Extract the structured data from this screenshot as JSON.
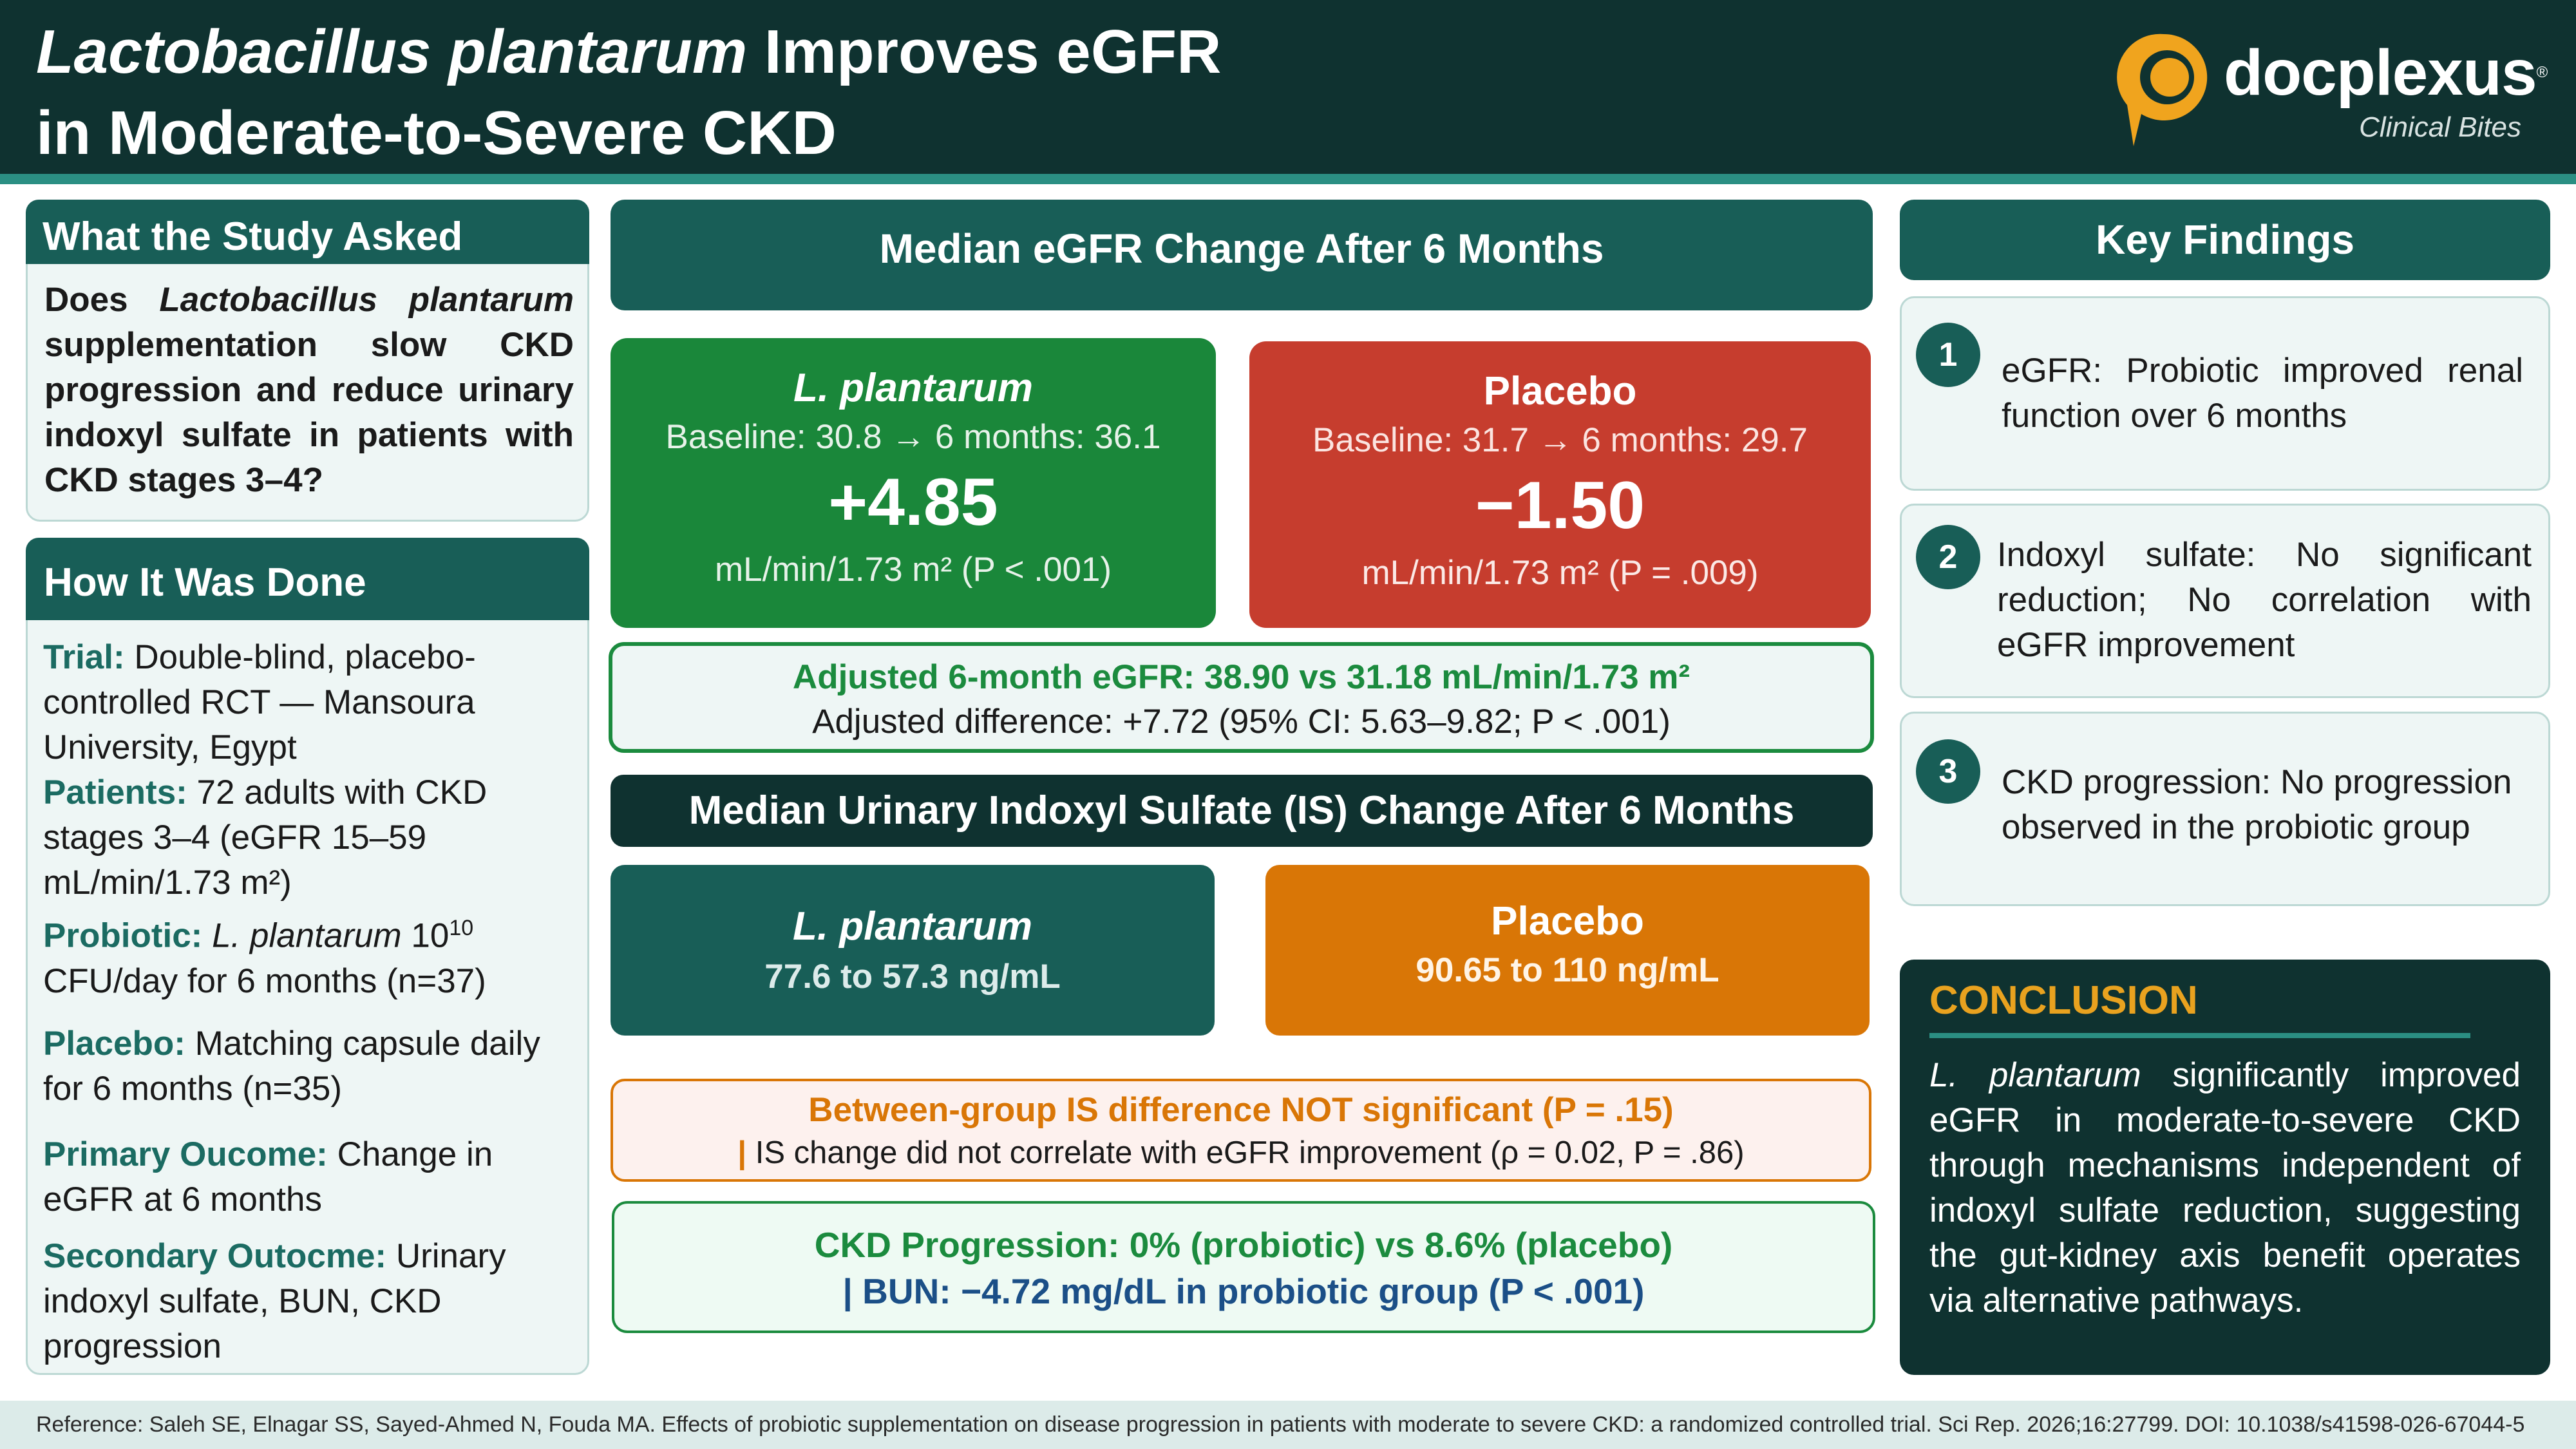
{
  "header": {
    "title_italic": "Lactobacillus plantarum",
    "title_rest": " Improves eGFR",
    "title_line2": "in Moderate-to-Severe CKD",
    "logo_word": "docplexus",
    "logo_reg": "®",
    "logo_tagline": "Clinical Bites"
  },
  "study_question": {
    "heading": "What the Study Asked",
    "q_pre": "Does ",
    "q_italic": "Lactobacillus plantarum",
    "q_post": " supplementation slow CKD progression and reduce urinary indoxyl sulfate in patients with CKD stages 3–4?"
  },
  "methods": {
    "heading": "How It Was Done",
    "trial_label": "Trial:",
    "trial_text": " Double-blind, placebo-controlled RCT — Mansoura University, Egypt",
    "patients_label": "Patients:",
    "patients_text": " 72 adults with CKD stages 3–4 (eGFR 15–59 mL/min/1.73 m²)",
    "probiotic_label": "Probiotic:",
    "probiotic_italic": "L. plantarum",
    "probiotic_dose_base": "10",
    "probiotic_dose_exp": "10",
    "probiotic_text": "CFU/day for 6 months (n=37)",
    "placebo_label": "Placebo:",
    "placebo_text": " Matching capsule daily for 6 months (n=35)",
    "primary_label": "Primary Oucome:",
    "primary_text": " Change in eGFR at 6 months",
    "secondary_label": "Secondary Outocme:",
    "secondary_text": " Urinary indoxyl sulfate, BUN, CKD progression"
  },
  "egfr": {
    "heading": "Median eGFR Change After 6 Months",
    "probiotic": {
      "name": "L. plantarum",
      "baseline": "Baseline: 30.8  →  6 months: 36.1",
      "change": "+4.85",
      "unit": "mL/min/1.73 m²  (P < .001)",
      "color": "#1a873a"
    },
    "placebo": {
      "name": "Placebo",
      "baseline": "Baseline: 31.7  →  6 months: 29.7",
      "change": "−1.50",
      "unit": "mL/min/1.73 m²  (P = .009)",
      "color": "#c63d2e"
    },
    "adjusted_line1": "Adjusted 6-month eGFR: 38.90 vs 31.18 mL/min/1.73 m²",
    "adjusted_line2": "Adjusted difference: +7.72  (95% CI: 5.63–9.82;  P < .001)"
  },
  "indoxyl": {
    "heading": "Median Urinary Indoxyl Sulfate (IS) Change After 6 Months",
    "probiotic": {
      "name": "L. plantarum",
      "value": "77.6 to 57.3 ng/mL"
    },
    "placebo": {
      "name": "Placebo",
      "value": "90.65 to 110  ng/mL"
    },
    "between_line1": "Between-group IS difference NOT significant (P = .15)",
    "between_bar": "|",
    "between_line2": " IS change did not correlate with eGFR improvement (ρ = 0.02, P = .86)",
    "progression_line1": "CKD Progression: 0% (probiotic) vs 8.6% (placebo)",
    "progression_line2": "| BUN: −4.72 mg/dL in probiotic group (P < .001)"
  },
  "key_findings": {
    "heading": "Key Findings",
    "items": [
      {
        "num": "1",
        "text": "eGFR: Probiotic improved renal function over 6 months"
      },
      {
        "num": "2",
        "text": "Indoxyl sulfate: No significant reduction; No correlation with eGFR improvement"
      },
      {
        "num": "3",
        "text": "CKD progression: No progression observed in the probiotic group"
      }
    ]
  },
  "conclusion": {
    "heading": "CONCLUSION",
    "italic": "L. plantarum",
    "text": " significantly improved eGFR in moderate-to-severe CKD through mechanisms independent of indoxyl sulfate reduction, suggesting the gut-kidney axis benefit operates via alternative pathways."
  },
  "footer": {
    "reference": "Reference: Saleh SE, Elnagar SS, Sayed-Ahmed N, Fouda MA. Effects of probiotic supplementation on disease progression in patients with moderate to severe CKD: a randomized controlled trial. Sci Rep. 2026;16:27799. DOI: 10.1038/s41598-026-67044-5"
  },
  "colors": {
    "header_bg": "#0f3230",
    "teal": "#185e57",
    "green": "#1a873a",
    "red": "#c63d2e",
    "orange": "#d97606",
    "accent_gold": "#e9a21f"
  }
}
